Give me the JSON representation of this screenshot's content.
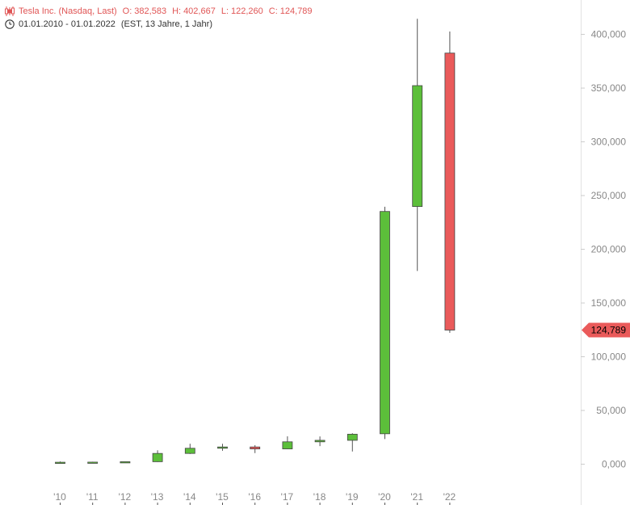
{
  "header": {
    "instrument": "Tesla Inc. (Nasdaq, Last)",
    "open_label": "O:",
    "open": "382,583",
    "high_label": "H:",
    "high": "402,667",
    "low_label": "L:",
    "low": "122,260",
    "close_label": "C:",
    "close": "124,789",
    "range": "01.01.2010 - 01.01.2022",
    "info": "(EST, 13 Jahre, 1 Jahr)",
    "icons": [
      "candlestick-icon",
      "clock-icon"
    ]
  },
  "chart_data": {
    "type": "candlestick",
    "categories": [
      "'10",
      "'11",
      "'12",
      "'13",
      "'14",
      "'15",
      "'16",
      "'17",
      "'18",
      "'19",
      "'20",
      "'21",
      "'22"
    ],
    "ohlc": [
      {
        "open": 1.2,
        "high": 2.5,
        "low": 0.8,
        "close": 1.8
      },
      {
        "open": 1.8,
        "high": 2.3,
        "low": 1.1,
        "close": 1.9
      },
      {
        "open": 1.9,
        "high": 2.4,
        "low": 1.2,
        "close": 2.3
      },
      {
        "open": 2.3,
        "high": 12.9,
        "low": 2.1,
        "close": 10.0
      },
      {
        "open": 10.0,
        "high": 19.0,
        "low": 9.5,
        "close": 14.8
      },
      {
        "open": 14.8,
        "high": 19.0,
        "low": 12.5,
        "close": 16.0
      },
      {
        "open": 16.0,
        "high": 17.7,
        "low": 10.3,
        "close": 14.2
      },
      {
        "open": 14.2,
        "high": 25.9,
        "low": 14.0,
        "close": 20.8
      },
      {
        "open": 20.8,
        "high": 25.8,
        "low": 16.8,
        "close": 22.2
      },
      {
        "open": 22.2,
        "high": 28.8,
        "low": 11.8,
        "close": 27.9
      },
      {
        "open": 28.3,
        "high": 239.6,
        "low": 23.4,
        "close": 235.2
      },
      {
        "open": 239.8,
        "high": 414.5,
        "low": 179.8,
        "close": 352.3
      },
      {
        "open": 382.583,
        "high": 402.667,
        "low": 122.26,
        "close": 124.789
      }
    ],
    "y_ticks": [
      "400,000",
      "350,000",
      "300,000",
      "250,000",
      "200,000",
      "150,000",
      "100,000",
      "50,000",
      "0,000"
    ],
    "y_tick_values": [
      400,
      350,
      300,
      250,
      200,
      150,
      100,
      50,
      0
    ],
    "ylim": [
      -38,
      432
    ],
    "last_value": 124.789,
    "last_label": "124,789",
    "colors": {
      "up": "#5cbf3a",
      "down": "#ea5a5a",
      "wick": "#555555",
      "tag": "#ea5a5a",
      "axis_text": "#888888",
      "axis_line": "#cccccc"
    }
  }
}
